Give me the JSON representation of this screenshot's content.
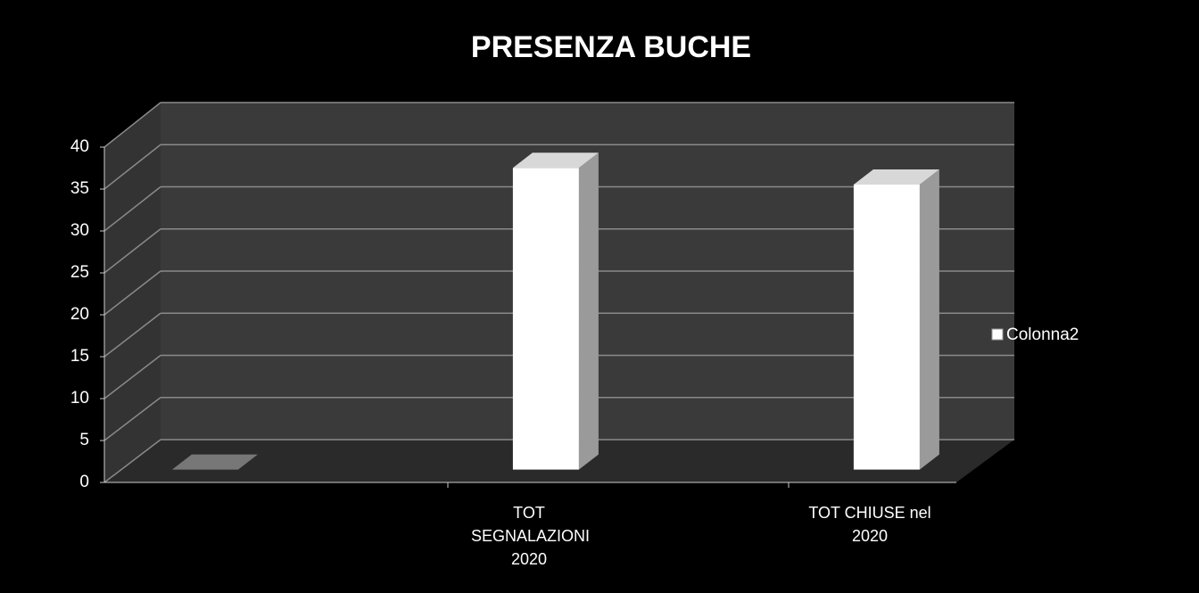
{
  "chart_data": {
    "type": "bar3d",
    "title": "PRESENZA BUCHE",
    "categories": [
      null,
      "TOT SEGNALAZIONI 2020",
      "TOT CHIUSE nel 2020"
    ],
    "series": [
      {
        "name": "Colonna2",
        "color": "#ffffff",
        "values": [
          0,
          36,
          34
        ]
      }
    ],
    "ylim": [
      0,
      40
    ],
    "yticks": [
      0,
      5,
      10,
      15,
      20,
      25,
      30,
      35,
      40
    ],
    "grid": true,
    "legend": "right"
  }
}
